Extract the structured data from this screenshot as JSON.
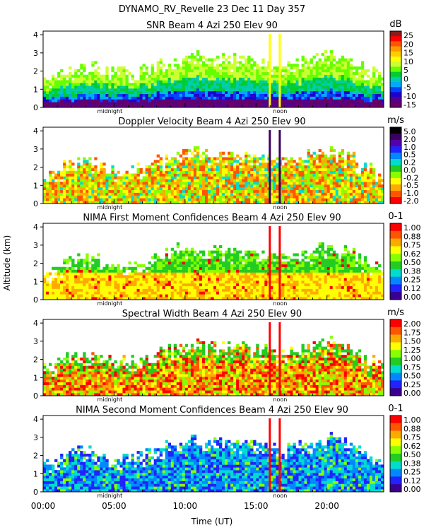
{
  "figure": {
    "title": "DYNAMO_RV_Revelle  23 Dec 11 Day 357",
    "ylabel": "Altitude (km)",
    "xlabel": "Time (UT)",
    "x_ticks": [
      "00:00",
      "05:00",
      "10:00",
      "15:00",
      "20:00"
    ],
    "x_tick_hours": [
      0,
      5,
      10,
      15,
      20
    ],
    "y_ticks": [
      "0",
      "1",
      "2",
      "3",
      "4"
    ],
    "marker_midnight": "midnight",
    "marker_noon": "noon"
  },
  "chart_data": [
    {
      "type": "heatmap",
      "title": "SNR Beam 4 Azi 250 Elev 90",
      "unit": "dB",
      "xlim": [
        0,
        24
      ],
      "ylim": [
        0,
        4.2
      ],
      "colorbar_labels": [
        "25",
        "20",
        "15",
        "10",
        "5",
        "0",
        "-5",
        "-10",
        "-15"
      ],
      "colors": [
        "#8b1a1a",
        "#ff0000",
        "#ff5500",
        "#ff9900",
        "#ffcc00",
        "#ffff00",
        "#ccff33",
        "#66ff00",
        "#00cc33",
        "#00ccaa",
        "#00aaff",
        "#0044ff",
        "#2200cc",
        "#550088",
        "#660066"
      ]
    },
    {
      "type": "heatmap",
      "title": "Doppler Velocity Beam 4 Azi 250 Elev 90",
      "unit": "m/s",
      "xlim": [
        0,
        24
      ],
      "ylim": [
        0,
        4.2
      ],
      "colorbar_labels": [
        "5.0",
        "2.0",
        "1.0",
        "0.5",
        "0.2",
        "0.0",
        "-0.2",
        "-0.5",
        "-1.0",
        "-2.0"
      ],
      "colors": [
        "#000000",
        "#3a0060",
        "#5500aa",
        "#2222ff",
        "#0088ff",
        "#00ddcc",
        "#22cc22",
        "#88ff00",
        "#ffff00",
        "#ffaa00",
        "#ff5500",
        "#ff0000"
      ]
    },
    {
      "type": "heatmap",
      "title": "NIMA First Moment Confidences Beam 4 Azi 250 Elev 90",
      "unit": "0-1",
      "xlim": [
        0,
        24
      ],
      "ylim": [
        0,
        4.2
      ],
      "colorbar_labels": [
        "1.00",
        "0.88",
        "0.75",
        "0.62",
        "0.50",
        "0.38",
        "0.25",
        "0.12",
        "0.00"
      ],
      "colors": [
        "#ff0000",
        "#ff5500",
        "#ffaa00",
        "#ffff00",
        "#88ff00",
        "#22cc22",
        "#00ddcc",
        "#0088ff",
        "#2222ff",
        "#3a0090"
      ]
    },
    {
      "type": "heatmap",
      "title": "Spectral Width Beam 4 Azi 250 Elev 90",
      "unit": "m/s",
      "xlim": [
        0,
        24
      ],
      "ylim": [
        0,
        4.2
      ],
      "colorbar_labels": [
        "2.00",
        "1.75",
        "1.50",
        "1.25",
        "1.00",
        "0.75",
        "0.50",
        "0.25",
        "0.00"
      ],
      "colors": [
        "#ff0000",
        "#ff5500",
        "#ffaa00",
        "#ffff00",
        "#88ff00",
        "#22cc22",
        "#00ddcc",
        "#0088ff",
        "#2222ff",
        "#3a0090"
      ]
    },
    {
      "type": "heatmap",
      "title": "NIMA Second Moment Confidences Beam 4 Azi 250 Elev 90",
      "unit": "0-1",
      "xlim": [
        0,
        24
      ],
      "ylim": [
        0,
        4.2
      ],
      "colorbar_labels": [
        "1.00",
        "0.88",
        "0.75",
        "0.62",
        "0.50",
        "0.38",
        "0.25",
        "0.12",
        "0.00"
      ],
      "colors": [
        "#ff0000",
        "#ff5500",
        "#ffaa00",
        "#ffff00",
        "#88ff00",
        "#22cc22",
        "#00ddcc",
        "#0088ff",
        "#2222ff",
        "#3a0090"
      ]
    }
  ]
}
